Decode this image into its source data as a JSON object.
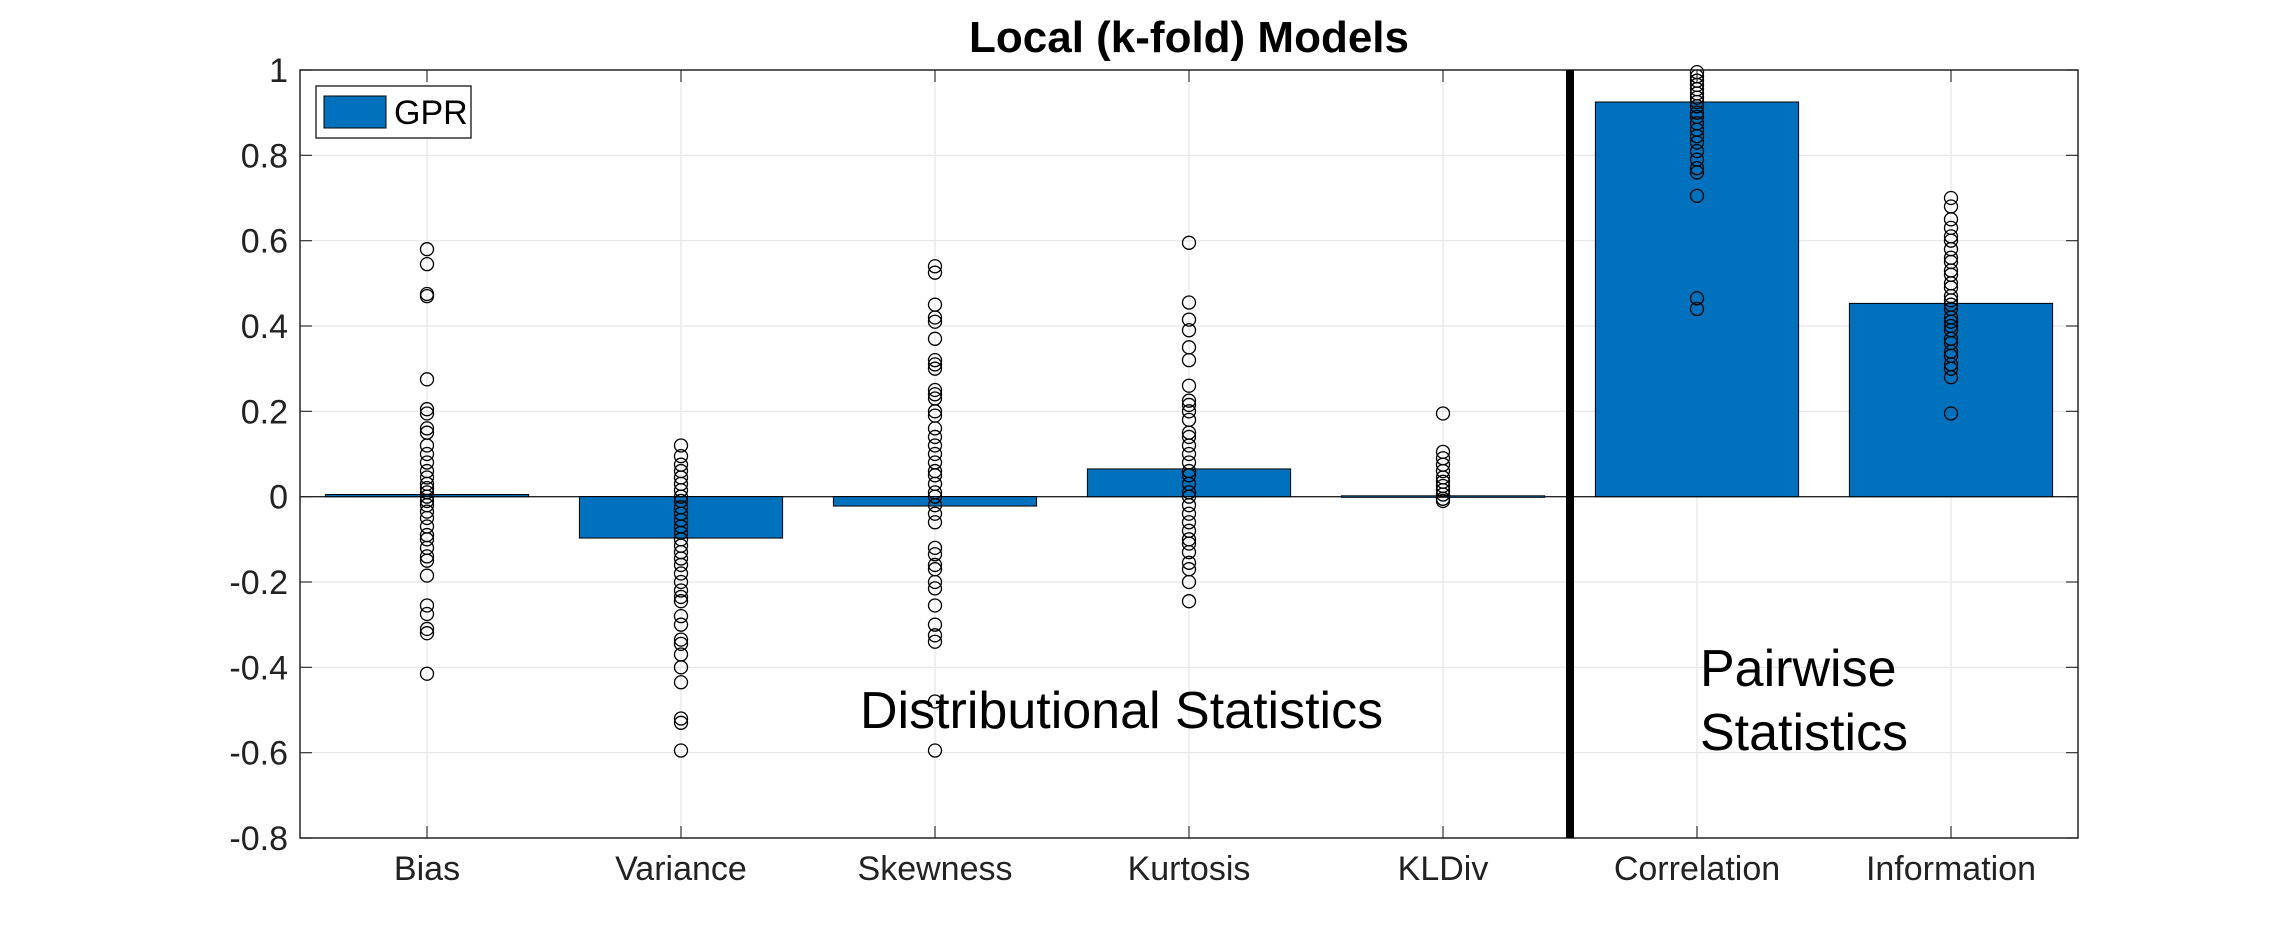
{
  "chart_data": {
    "type": "bar",
    "title": "Local (k-fold) Models",
    "xlabel": "",
    "ylabel": "",
    "categories": [
      "Bias",
      "Variance",
      "Skewness",
      "Kurtosis",
      "KLDiv",
      "Correlation",
      "Information"
    ],
    "ylim": [
      -0.8,
      1
    ],
    "yticks": [
      "1",
      "0.8",
      "0.6",
      "0.4",
      "0.2",
      "0",
      "-0.2",
      "-0.4",
      "-0.6",
      "-0.8"
    ],
    "grid": true,
    "legend": {
      "position": "top-left",
      "entries": [
        "GPR"
      ]
    },
    "series": [
      {
        "name": "GPR",
        "color": "#0072BD",
        "values": [
          0.005,
          -0.097,
          -0.022,
          0.065,
          0.002,
          0.925,
          0.453
        ]
      }
    ],
    "divider_after_category": "KLDiv",
    "annotations": [
      {
        "text": "Distributional Statistics",
        "group": "distributional"
      },
      {
        "text": "Pairwise",
        "group": "pairwise"
      },
      {
        "text": "Statistics",
        "group": "pairwise"
      }
    ],
    "points": [
      [
        0.58,
        0.545,
        0.475,
        0.47,
        0.275,
        0.205,
        0.195,
        0.16,
        0.15,
        0.12,
        0.1,
        0.08,
        0.06,
        0.045,
        0.03,
        0.02,
        0.01,
        0.0,
        -0.01,
        -0.02,
        -0.035,
        -0.05,
        -0.07,
        -0.09,
        -0.1,
        -0.12,
        -0.14,
        -0.15,
        -0.185,
        -0.255,
        -0.275,
        -0.31,
        -0.32,
        -0.415
      ],
      [
        0.12,
        0.095,
        0.075,
        0.06,
        0.045,
        0.03,
        0.015,
        0.0,
        -0.01,
        -0.025,
        -0.04,
        -0.055,
        -0.07,
        -0.085,
        -0.1,
        -0.115,
        -0.13,
        -0.145,
        -0.16,
        -0.18,
        -0.2,
        -0.22,
        -0.235,
        -0.245,
        -0.28,
        -0.3,
        -0.335,
        -0.345,
        -0.37,
        -0.4,
        -0.435,
        -0.52,
        -0.53,
        -0.595
      ],
      [
        0.54,
        0.525,
        0.45,
        0.42,
        0.41,
        0.37,
        0.32,
        0.31,
        0.3,
        0.25,
        0.24,
        0.23,
        0.2,
        0.19,
        0.16,
        0.14,
        0.12,
        0.1,
        0.08,
        0.06,
        0.05,
        0.03,
        0.01,
        0.0,
        -0.02,
        -0.04,
        -0.06,
        -0.12,
        -0.135,
        -0.16,
        -0.17,
        -0.2,
        -0.215,
        -0.255,
        -0.3,
        -0.325,
        -0.34,
        -0.48,
        -0.595
      ],
      [
        0.595,
        0.455,
        0.415,
        0.39,
        0.35,
        0.32,
        0.26,
        0.225,
        0.215,
        0.2,
        0.18,
        0.15,
        0.14,
        0.12,
        0.1,
        0.08,
        0.06,
        0.05,
        0.03,
        0.01,
        0.0,
        -0.02,
        -0.04,
        -0.06,
        -0.08,
        -0.1,
        -0.11,
        -0.13,
        -0.155,
        -0.17,
        -0.2,
        -0.245
      ],
      [
        0.195,
        0.105,
        0.09,
        0.075,
        0.06,
        0.045,
        0.035,
        0.025,
        0.015,
        0.005,
        -0.005,
        -0.01
      ],
      [
        0.995,
        0.985,
        0.975,
        0.965,
        0.955,
        0.945,
        0.935,
        0.925,
        0.915,
        0.9,
        0.89,
        0.875,
        0.86,
        0.845,
        0.83,
        0.81,
        0.79,
        0.77,
        0.76,
        0.705,
        0.465,
        0.44
      ],
      [
        0.7,
        0.68,
        0.65,
        0.63,
        0.61,
        0.6,
        0.58,
        0.56,
        0.55,
        0.53,
        0.52,
        0.5,
        0.49,
        0.47,
        0.46,
        0.45,
        0.44,
        0.42,
        0.41,
        0.4,
        0.39,
        0.37,
        0.36,
        0.34,
        0.33,
        0.31,
        0.3,
        0.28,
        0.195
      ]
    ]
  }
}
